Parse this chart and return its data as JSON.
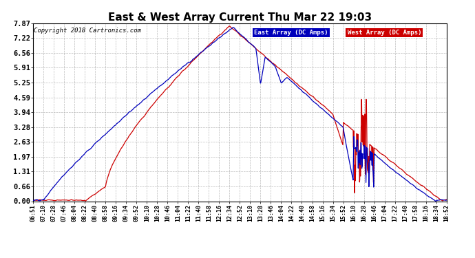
{
  "title": "East & West Array Current Thu Mar 22 19:03",
  "copyright": "Copyright 2018 Cartronics.com",
  "legend_east": "East Array (DC Amps)",
  "legend_west": "West Array (DC Amps)",
  "east_color": "#0000bb",
  "west_color": "#cc0000",
  "background_color": "#ffffff",
  "grid_color": "#aaaaaa",
  "yticks": [
    0.0,
    0.66,
    1.31,
    1.97,
    2.63,
    3.28,
    3.94,
    4.59,
    5.25,
    5.91,
    6.56,
    7.22,
    7.87
  ],
  "ylim": [
    0.0,
    7.87
  ],
  "xtick_labels": [
    "06:51",
    "07:10",
    "07:28",
    "07:46",
    "08:04",
    "08:22",
    "08:40",
    "08:58",
    "09:16",
    "09:34",
    "09:52",
    "10:10",
    "10:28",
    "10:46",
    "11:04",
    "11:22",
    "11:40",
    "11:58",
    "12:16",
    "12:34",
    "12:52",
    "13:10",
    "13:28",
    "13:46",
    "14:04",
    "14:22",
    "14:40",
    "14:58",
    "15:16",
    "15:34",
    "15:52",
    "16:10",
    "16:28",
    "16:46",
    "17:04",
    "17:22",
    "17:40",
    "17:58",
    "18:16",
    "18:34",
    "18:52"
  ]
}
